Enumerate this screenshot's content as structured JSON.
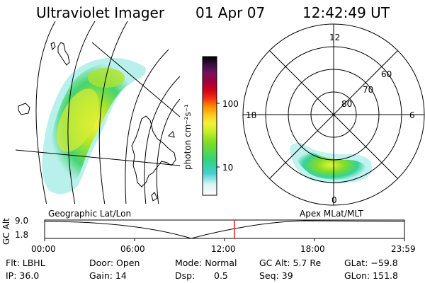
{
  "header": {
    "instrument": "Ultraviolet Imager",
    "date": "01 Apr 07",
    "time": "12:42:49 UT"
  },
  "colorbar": {
    "label": "photon cm⁻²s⁻¹",
    "ticks": [
      "100",
      "10"
    ]
  },
  "polar_plot": {
    "mlt_labels": [
      "12",
      "18",
      "6",
      "0"
    ],
    "lat_labels": [
      "60",
      "70",
      "80"
    ]
  },
  "left_plot_label": "Geographic Lat/Lon",
  "right_plot_label": "Apex MLat/MLT",
  "altitude_panel": {
    "ylabel": "GC Alt",
    "y_ticks": [
      "9.0",
      "1.8"
    ],
    "x_ticks": [
      "00:00",
      "06:00",
      "12:00",
      "18:00",
      "23:59"
    ]
  },
  "info": {
    "filter": "Flt: LBHL",
    "door": "Door: Open",
    "mode": "Mode: Normal",
    "gc_alt": "GC Alt: 5.7 Re",
    "glat": "GLat: −59.8",
    "ip": "IP: 36.0",
    "gain": "Gain: 14",
    "dsp_label": "Dsp:",
    "dsp_value": "0.5",
    "seq": "Seq: 39",
    "glon": "GLon: 151.8"
  }
}
